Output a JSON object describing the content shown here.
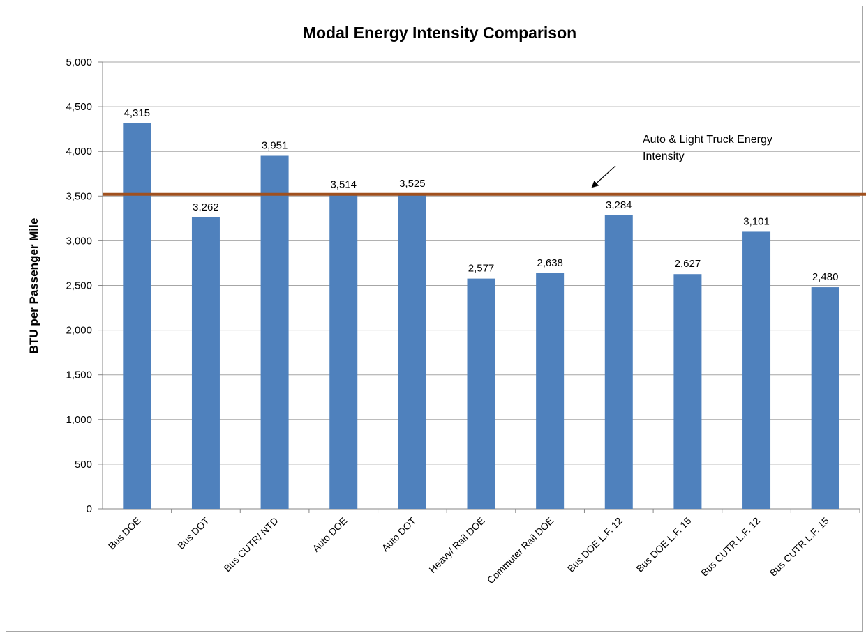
{
  "chart_data": {
    "type": "bar",
    "title": "Modal Energy Intensity Comparison",
    "xlabel": "",
    "ylabel": "BTU per Passenger Mile",
    "ylim": [
      0,
      5000
    ],
    "yticks": [
      0,
      500,
      1000,
      1500,
      2000,
      2500,
      3000,
      3500,
      4000,
      4500,
      5000
    ],
    "ytick_labels": [
      "0",
      "500",
      "1,000",
      "1,500",
      "2,000",
      "2,500",
      "3,000",
      "3,500",
      "4,000",
      "4,500",
      "5,000"
    ],
    "grid": true,
    "categories": [
      "Bus DOE",
      "Bus DOT",
      "Bus CUTR/ NTD",
      "Auto DOE",
      "Auto DOT",
      "Heavy/ Rail DOE",
      "Commuter Rail DOE",
      "Bus DOE L.F. 12",
      "Bus DOE L.F. 15",
      "Bus CUTR L.F. 12",
      "Bus CUTR L.F. 15"
    ],
    "values": [
      4315,
      3262,
      3951,
      3514,
      3525,
      2577,
      2638,
      3284,
      2627,
      3101,
      2480
    ],
    "data_labels": [
      "4,315",
      "3,262",
      "3,951",
      "3,514",
      "3,525",
      "2,577",
      "2,638",
      "3,284",
      "2,627",
      "3,101",
      "2,480"
    ],
    "bar_color": "#4f81bd",
    "reference_line": {
      "value": 3520,
      "color": "#a0501e",
      "annotation": [
        "Auto & Light Truck Energy",
        "Intensity"
      ]
    }
  }
}
